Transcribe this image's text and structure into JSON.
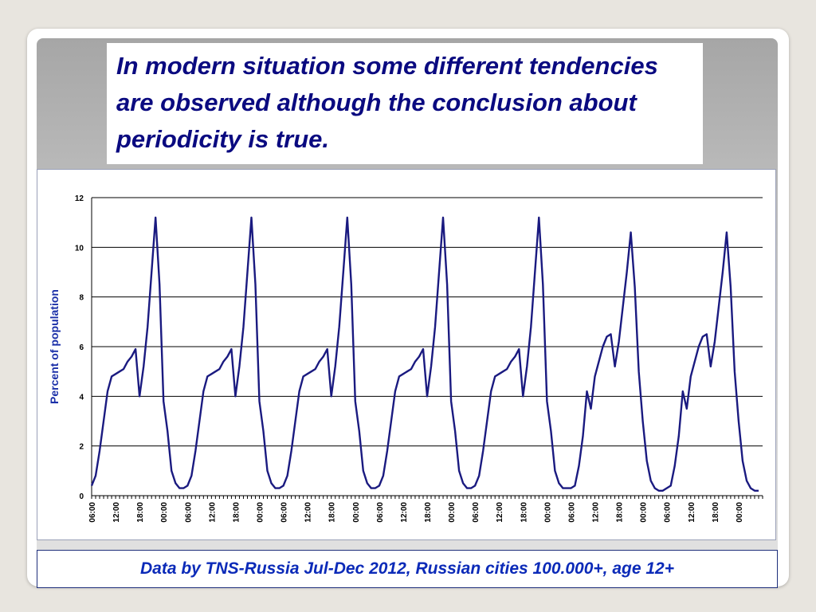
{
  "headline": "In modern situation some different tendencies are observed although the conclusion about periodicity is true.",
  "caption": "Data by TNS-Russia Jul-Dec 2012, Russian cities 100.000+, age 12+",
  "colors": {
    "title_text": "#0a0a80",
    "caption_text": "#0b2ab8",
    "line": "#1a1a80",
    "grid": "#000000"
  },
  "chart_data": {
    "type": "line",
    "title": "",
    "xlabel": "",
    "ylabel": "Percent of population",
    "ylim": [
      0,
      12
    ],
    "yticks": [
      0,
      2,
      4,
      6,
      8,
      10,
      12
    ],
    "grid": true,
    "legend": "none",
    "x_tick_labels": [
      "06:00",
      "12:00",
      "18:00",
      "00:00",
      "06:00",
      "12:00",
      "18:00",
      "00:00",
      "06:00",
      "12:00",
      "18:00",
      "00:00",
      "06:00",
      "12:00",
      "18:00",
      "00:00",
      "06:00",
      "12:00",
      "18:00",
      "00:00",
      "06:00",
      "12:00",
      "18:00",
      "00:00",
      "06:00",
      "12:00",
      "18:00",
      "00:00"
    ],
    "x_hours_start": "06:00",
    "x_hours_span": 168,
    "series": [
      {
        "values": [
          0.4,
          0.8,
          1.8,
          3.0,
          4.2,
          4.8,
          4.9,
          5.0,
          5.1,
          5.4,
          5.6,
          5.9,
          4.0,
          5.2,
          6.8,
          9.0,
          11.2,
          8.5,
          3.8,
          2.6,
          1.0,
          0.5,
          0.3,
          0.3,
          0.4,
          0.8,
          1.8,
          3.0,
          4.2,
          4.8,
          4.9,
          5.0,
          5.1,
          5.4,
          5.6,
          5.9,
          4.0,
          5.2,
          6.8,
          9.0,
          11.2,
          8.5,
          3.8,
          2.6,
          1.0,
          0.5,
          0.3,
          0.3,
          0.4,
          0.8,
          1.8,
          3.0,
          4.2,
          4.8,
          4.9,
          5.0,
          5.1,
          5.4,
          5.6,
          5.9,
          4.0,
          5.2,
          6.8,
          9.0,
          11.2,
          8.5,
          3.8,
          2.6,
          1.0,
          0.5,
          0.3,
          0.3,
          0.4,
          0.8,
          1.8,
          3.0,
          4.2,
          4.8,
          4.9,
          5.0,
          5.1,
          5.4,
          5.6,
          5.9,
          4.0,
          5.2,
          6.8,
          9.0,
          11.2,
          8.5,
          3.8,
          2.6,
          1.0,
          0.5,
          0.3,
          0.3,
          0.4,
          0.8,
          1.8,
          3.0,
          4.2,
          4.8,
          4.9,
          5.0,
          5.1,
          5.4,
          5.6,
          5.9,
          4.0,
          5.2,
          6.8,
          9.0,
          11.2,
          8.5,
          3.8,
          2.6,
          1.0,
          0.5,
          0.3,
          0.3,
          0.3,
          0.4,
          1.2,
          2.4,
          4.2,
          3.5,
          4.8,
          5.4,
          6.0,
          6.4,
          6.5,
          5.2,
          6.2,
          7.6,
          9.0,
          10.6,
          8.4,
          5.0,
          3.0,
          1.4,
          0.6,
          0.3,
          0.2,
          0.2,
          0.3,
          0.4,
          1.2,
          2.4,
          4.2,
          3.5,
          4.8,
          5.4,
          6.0,
          6.4,
          6.5,
          5.2,
          6.2,
          7.6,
          9.0,
          10.6,
          8.4,
          5.0,
          3.0,
          1.4,
          0.6,
          0.3,
          0.2,
          0.2
        ]
      }
    ]
  }
}
